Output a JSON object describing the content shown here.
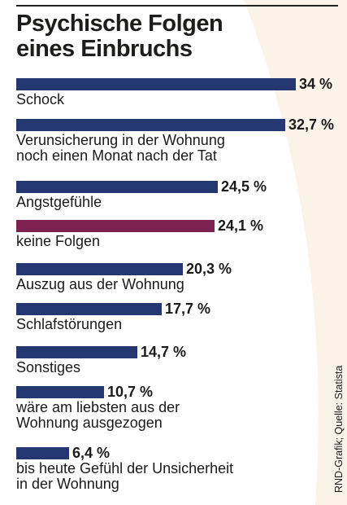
{
  "title_lines": [
    "Psychische Folgen",
    "eines Einbruchs"
  ],
  "source": "RND-Grafik; Quelle: Statista",
  "colors": {
    "bar": "#253770",
    "highlight": "#7d2150",
    "background_curve": "#fbf2e8"
  },
  "chart_data": {
    "type": "bar",
    "orientation": "horizontal",
    "unit": "%",
    "xlim": [
      0,
      34
    ],
    "categories": [
      [
        "Schock"
      ],
      [
        "Verunsicherung in der Wohnung",
        "noch einen Monat nach der Tat"
      ],
      [
        "Angstgefühle"
      ],
      [
        "keine Folgen"
      ],
      [
        "Auszug aus der Wohnung"
      ],
      [
        "Schlafstörungen"
      ],
      [
        "Sonstiges"
      ],
      [
        "wäre am liebsten aus der",
        "Wohnung ausgezogen"
      ],
      [
        "bis heute Gefühl der Unsicherheit",
        "in der Wohnung"
      ]
    ],
    "values": [
      34,
      32.7,
      24.5,
      24.1,
      20.3,
      17.7,
      14.7,
      10.7,
      6.4
    ],
    "value_labels": [
      "34 %",
      "32,7 %",
      "24,5 %",
      "24,1 %",
      "20,3 %",
      "17,7 %",
      "14,7 %",
      "10,7 %",
      "6,4 %"
    ],
    "highlighted_index": 3
  }
}
